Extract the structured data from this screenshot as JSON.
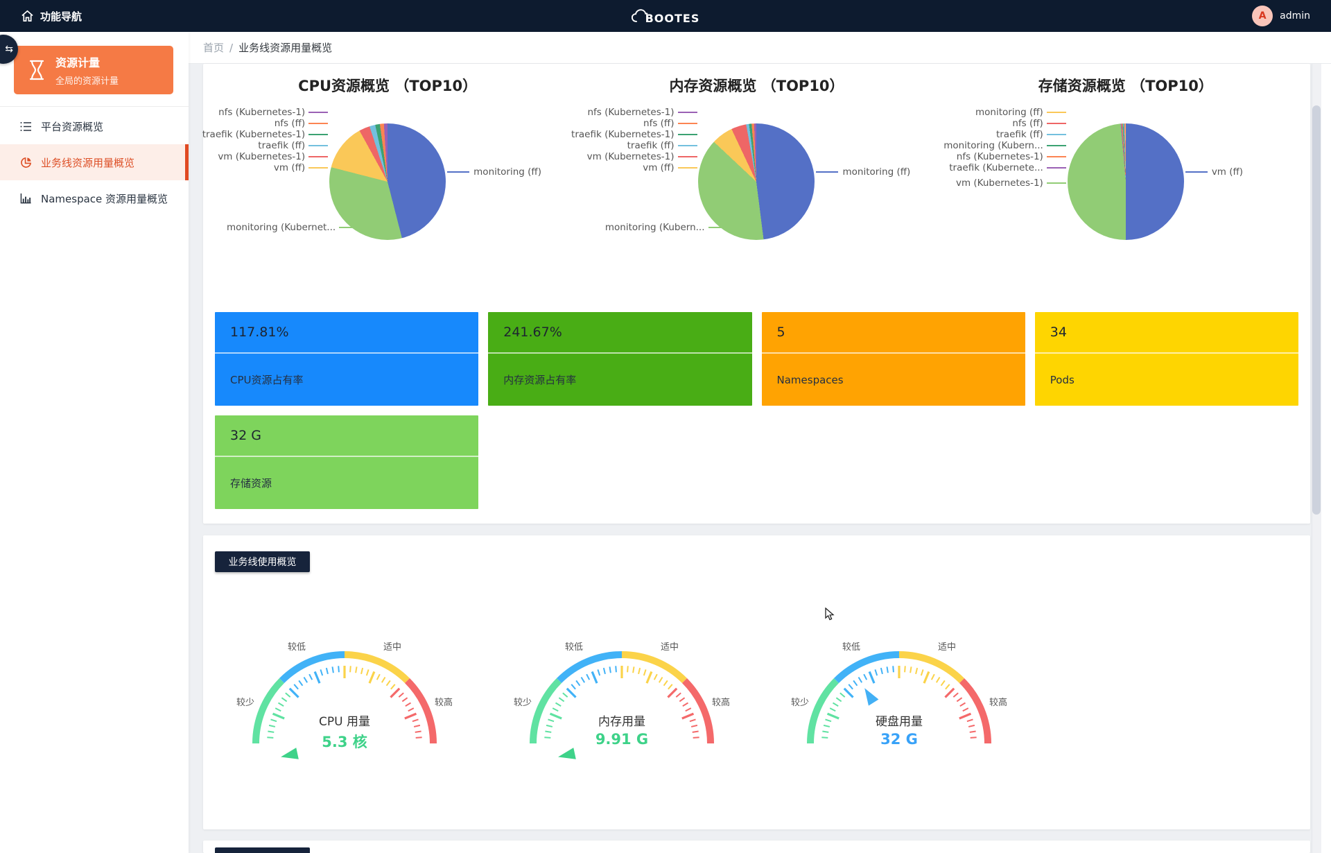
{
  "topbar": {
    "nav_label": "功能导航",
    "brand": "BOOTES",
    "user_name": "admin",
    "avatar_letter": "A"
  },
  "sidebar": {
    "group_title": "资源计量",
    "group_subtitle": "全局的资源计量",
    "items": [
      {
        "label": "平台资源概览",
        "icon": "list-icon",
        "active": false
      },
      {
        "label": "业务线资源用量概览",
        "icon": "pie-chart-icon",
        "active": true
      },
      {
        "label": "Namespace 资源用量概览",
        "icon": "bar-chart-icon",
        "active": false
      }
    ]
  },
  "breadcrumb": {
    "home": "首页",
    "separator": "/",
    "current": "业务线资源用量概览"
  },
  "section_badge": "业务线使用概览",
  "stat_cards": [
    {
      "value": "117.81%",
      "label": "CPU资源占有率",
      "color": "#1789fc"
    },
    {
      "value": "241.67%",
      "label": "内存资源占有率",
      "color": "#49ad15"
    },
    {
      "value": "5",
      "label": "Namespaces",
      "color": "#ffa302"
    },
    {
      "value": "34",
      "label": "Pods",
      "color": "#fed501"
    },
    {
      "value": "32 G",
      "label": "存储资源",
      "color": "#7ed45c"
    }
  ],
  "chart_data": [
    {
      "type": "pie",
      "title": "CPU资源概览 （TOP10）",
      "slices": [
        {
          "name": "monitoring (ff)",
          "value": 46,
          "color": "#5470c6"
        },
        {
          "name": "monitoring (Kubernetes-1)",
          "value": 33,
          "color": "#91cc75"
        },
        {
          "name": "vm (ff)",
          "value": 13,
          "color": "#fac858"
        },
        {
          "name": "vm (Kubernetes-1)",
          "value": 3,
          "color": "#ee6666"
        },
        {
          "name": "traefik (ff)",
          "value": 1.6,
          "color": "#73c0de"
        },
        {
          "name": "traefik (Kubernetes-1)",
          "value": 1.3,
          "color": "#3ba272"
        },
        {
          "name": "nfs (ff)",
          "value": 1.1,
          "color": "#fc8452"
        },
        {
          "name": "nfs (Kubernetes-1)",
          "value": 1.0,
          "color": "#9a60b4"
        }
      ],
      "labels_left": [
        {
          "text": "nfs (Kubernetes-1)",
          "color": "#9a60b4"
        },
        {
          "text": "nfs (ff)",
          "color": "#fc8452"
        },
        {
          "text": "traefik (Kubernetes-1)",
          "color": "#3ba272"
        },
        {
          "text": "traefik (ff)",
          "color": "#73c0de"
        },
        {
          "text": "vm (Kubernetes-1)",
          "color": "#ee6666"
        },
        {
          "text": "vm (ff)",
          "color": "#fac858"
        }
      ],
      "label_right": {
        "text": "monitoring (ff)",
        "color": "#5470c6"
      },
      "label_bottom": {
        "text": "monitoring (Kubernet...",
        "color": "#91cc75"
      }
    },
    {
      "type": "pie",
      "title": "内存资源概览 （TOP10）",
      "slices": [
        {
          "name": "monitoring (ff)",
          "value": 48,
          "color": "#5470c6"
        },
        {
          "name": "monitoring (Kubernetes-1)",
          "value": 39,
          "color": "#91cc75"
        },
        {
          "name": "vm (ff)",
          "value": 6,
          "color": "#fac858"
        },
        {
          "name": "vm (Kubernetes-1)",
          "value": 4.2,
          "color": "#ee6666"
        },
        {
          "name": "traefik (ff)",
          "value": 0.8,
          "color": "#73c0de"
        },
        {
          "name": "traefik (Kubernetes-1)",
          "value": 0.7,
          "color": "#3ba272"
        },
        {
          "name": "nfs (ff)",
          "value": 0.7,
          "color": "#fc8452"
        },
        {
          "name": "nfs (Kubernetes-1)",
          "value": 0.6,
          "color": "#9a60b4"
        }
      ],
      "labels_left": [
        {
          "text": "nfs (Kubernetes-1)",
          "color": "#9a60b4"
        },
        {
          "text": "nfs (ff)",
          "color": "#fc8452"
        },
        {
          "text": "traefik (Kubernetes-1)",
          "color": "#3ba272"
        },
        {
          "text": "traefik (ff)",
          "color": "#73c0de"
        },
        {
          "text": "vm (Kubernetes-1)",
          "color": "#ee6666"
        },
        {
          "text": "vm (ff)",
          "color": "#fac858"
        }
      ],
      "label_right": {
        "text": "monitoring (ff)",
        "color": "#5470c6"
      },
      "label_bottom": {
        "text": "monitoring (Kubern...",
        "color": "#91cc75"
      }
    },
    {
      "type": "pie",
      "title": "存储资源概览 （TOP10）",
      "slices": [
        {
          "name": "vm (ff)",
          "value": 50,
          "color": "#5470c6"
        },
        {
          "name": "vm (Kubernetes-1)",
          "value": 48.6,
          "color": "#91cc75"
        },
        {
          "name": "traefik (Kubernetes-1)",
          "value": 0.25,
          "color": "#9a60b4"
        },
        {
          "name": "nfs (Kubernetes-1)",
          "value": 0.25,
          "color": "#fc8452"
        },
        {
          "name": "monitoring (Kubernetes-1)",
          "value": 0.25,
          "color": "#3ba272"
        },
        {
          "name": "traefik (ff)",
          "value": 0.25,
          "color": "#73c0de"
        },
        {
          "name": "nfs (ff)",
          "value": 0.2,
          "color": "#ee6666"
        },
        {
          "name": "monitoring (ff)",
          "value": 0.2,
          "color": "#fac858"
        }
      ],
      "labels_left": [
        {
          "text": "monitoring (ff)",
          "color": "#fac858"
        },
        {
          "text": "nfs (ff)",
          "color": "#ee6666"
        },
        {
          "text": "traefik (ff)",
          "color": "#73c0de"
        },
        {
          "text": "monitoring (Kubern...",
          "color": "#3ba272"
        },
        {
          "text": "nfs (Kubernetes-1)",
          "color": "#fc8452"
        },
        {
          "text": "traefik (Kubernete...",
          "color": "#9a60b4"
        },
        {
          "text": "vm (Kubernetes-1)",
          "color": "#91cc75"
        }
      ],
      "label_right": {
        "text": "vm (ff)",
        "color": "#5470c6"
      },
      "label_bottom": null
    },
    {
      "type": "gauge",
      "title": "CPU 用量",
      "value": "5.3 核",
      "value_color": "#3ed289",
      "pointer_angle": 192,
      "pointer_color": "#3ed289",
      "zone_labels": [
        "较少",
        "较低",
        "适中",
        "较高"
      ],
      "zone_colors": [
        "#60e2a2",
        "#41b2f7",
        "#fbd349",
        "#f4696a"
      ]
    },
    {
      "type": "gauge",
      "title": "内存用量",
      "value": "9.91 G",
      "value_color": "#3ed289",
      "pointer_angle": 192,
      "pointer_color": "#3ed289",
      "zone_labels": [
        "较少",
        "较低",
        "适中",
        "较高"
      ],
      "zone_colors": [
        "#60e2a2",
        "#41b2f7",
        "#fbd349",
        "#f4696a"
      ]
    },
    {
      "type": "gauge",
      "title": "硬盘用量",
      "value": "32 G",
      "value_color": "#38a2f8",
      "pointer_angle": 122,
      "pointer_color": "#43b0f5",
      "zone_labels": [
        "较少",
        "较低",
        "适中",
        "较高"
      ],
      "zone_colors": [
        "#60e2a2",
        "#41b2f7",
        "#fbd349",
        "#f4696a"
      ]
    }
  ]
}
